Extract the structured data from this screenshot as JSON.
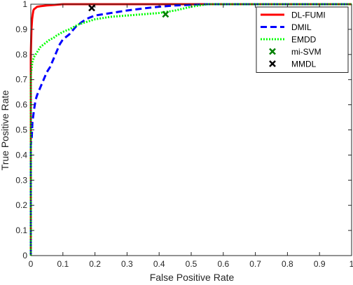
{
  "chart_data": {
    "type": "line",
    "title": "",
    "xlabel": "False Positive Rate",
    "ylabel": "True Positive Rate",
    "xlim": [
      0,
      1
    ],
    "ylim": [
      0,
      1
    ],
    "xticks": [
      0,
      0.1,
      0.2,
      0.3,
      0.4,
      0.5,
      0.6,
      0.7,
      0.8,
      0.9,
      1
    ],
    "yticks": [
      0,
      0.1,
      0.2,
      0.3,
      0.4,
      0.5,
      0.6,
      0.7,
      0.8,
      0.9,
      1
    ],
    "xtick_labels": [
      "0",
      "0.1",
      "0.2",
      "0.3",
      "0.4",
      "0.5",
      "0.6",
      "0.7",
      "0.8",
      "0.9",
      "1"
    ],
    "ytick_labels": [
      "0",
      "0.1",
      "0.2",
      "0.3",
      "0.4",
      "0.5",
      "0.6",
      "0.7",
      "0.8",
      "0.9",
      "1"
    ],
    "grid": false,
    "legend_position": "top-right",
    "series": [
      {
        "name": "DL-FUMI",
        "kind": "line",
        "style": "solid",
        "color": "#ff0000",
        "x": [
          0,
          0,
          0.002,
          0.004,
          0.006,
          0.008,
          0.01,
          0.015,
          0.02,
          0.03,
          0.05,
          0.07,
          0.1,
          0.2,
          0.4,
          1.0
        ],
        "y": [
          0,
          0.8,
          0.9,
          0.94,
          0.96,
          0.975,
          0.98,
          0.985,
          0.99,
          0.992,
          0.995,
          0.997,
          1.0,
          1.0,
          1.0,
          1.0
        ]
      },
      {
        "name": "DMIL",
        "kind": "line",
        "style": "dashed",
        "color": "#0000ff",
        "x": [
          0,
          0,
          0.003,
          0.005,
          0.01,
          0.015,
          0.02,
          0.03,
          0.04,
          0.05,
          0.06,
          0.07,
          0.08,
          0.09,
          0.1,
          0.12,
          0.14,
          0.16,
          0.18,
          0.2,
          0.25,
          0.3,
          0.35,
          0.4,
          0.45,
          0.5,
          0.55,
          1.0
        ],
        "y": [
          0,
          0.44,
          0.47,
          0.53,
          0.58,
          0.62,
          0.64,
          0.67,
          0.7,
          0.73,
          0.75,
          0.78,
          0.81,
          0.84,
          0.86,
          0.88,
          0.91,
          0.93,
          0.945,
          0.955,
          0.965,
          0.975,
          0.983,
          0.99,
          0.995,
          0.998,
          1.0,
          1.0
        ]
      },
      {
        "name": "EMDD",
        "kind": "line",
        "style": "dotted",
        "color": "#00ff00",
        "x": [
          0,
          0,
          0.003,
          0.005,
          0.01,
          0.02,
          0.03,
          0.04,
          0.05,
          0.06,
          0.07,
          0.08,
          0.1,
          0.12,
          0.15,
          0.2,
          0.25,
          0.3,
          0.35,
          0.4,
          0.45,
          0.5,
          0.55,
          1.0
        ],
        "y": [
          0,
          0.72,
          0.75,
          0.77,
          0.79,
          0.81,
          0.83,
          0.84,
          0.85,
          0.86,
          0.865,
          0.875,
          0.89,
          0.9,
          0.92,
          0.94,
          0.95,
          0.955,
          0.96,
          0.965,
          0.975,
          0.99,
          1.0,
          1.0
        ]
      },
      {
        "name": "mi-SVM",
        "kind": "marker",
        "marker": "x",
        "color": "#008000",
        "x": [
          0.42
        ],
        "y": [
          0.96
        ]
      },
      {
        "name": "MMDL",
        "kind": "marker",
        "marker": "x",
        "color": "#000000",
        "x": [
          0.19
        ],
        "y": [
          0.985
        ]
      }
    ]
  }
}
